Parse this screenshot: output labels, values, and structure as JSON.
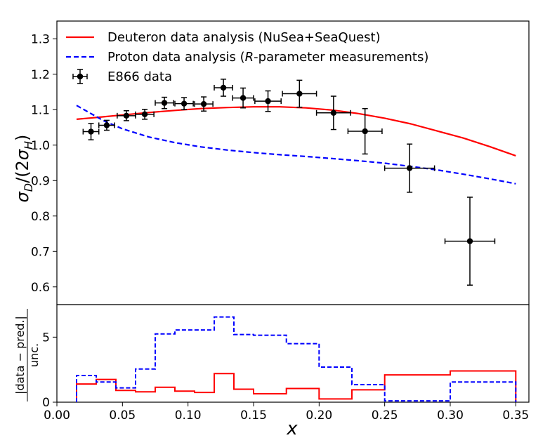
{
  "chart_data": [
    {
      "type": "line",
      "panel": "main",
      "ylabel": "σ_D/(2σ_H)",
      "xlim": [
        0.0,
        0.36
      ],
      "ylim": [
        0.55,
        1.35
      ],
      "yticks": [
        0.6,
        0.7,
        0.8,
        0.9,
        1.0,
        1.1,
        1.2,
        1.3
      ],
      "ytick_labels": [
        "0.6",
        "0.7",
        "0.8",
        "0.9",
        "1.0",
        "1.1",
        "1.2",
        "1.3"
      ],
      "legend": {
        "placement": "top-left",
        "entries": [
          {
            "parts": [
              {
                "text": "Deuteron data analysis (NuSea+SeaQuest)",
                "italic": false
              }
            ],
            "color": "#ff0000",
            "style": "solid"
          },
          {
            "parts": [
              {
                "text": "Proton data analysis (",
                "italic": false
              },
              {
                "text": "R",
                "italic": true
              },
              {
                "text": "-parameter measurements)",
                "italic": false
              }
            ],
            "color": "#0000ff",
            "style": "dashed"
          },
          {
            "parts": [
              {
                "text": "E866 data",
                "italic": false
              }
            ],
            "color": "#000000",
            "style": "errorbar"
          }
        ]
      },
      "series": [
        {
          "name": "Deuteron data analysis (NuSea+SeaQuest)",
          "color": "#ff0000",
          "style": "solid",
          "x": [
            0.015,
            0.03,
            0.05,
            0.07,
            0.09,
            0.11,
            0.13,
            0.15,
            0.17,
            0.19,
            0.21,
            0.23,
            0.25,
            0.27,
            0.29,
            0.31,
            0.33,
            0.35
          ],
          "y": [
            1.073,
            1.078,
            1.085,
            1.092,
            1.098,
            1.103,
            1.106,
            1.108,
            1.108,
            1.105,
            1.099,
            1.089,
            1.076,
            1.06,
            1.04,
            1.02,
            0.996,
            0.97
          ]
        },
        {
          "name": "Proton data analysis (R-parameter measurements)",
          "color": "#0000ff",
          "style": "dashed",
          "x": [
            0.015,
            0.025,
            0.035,
            0.05,
            0.07,
            0.09,
            0.11,
            0.13,
            0.15,
            0.17,
            0.19,
            0.21,
            0.23,
            0.25,
            0.27,
            0.29,
            0.31,
            0.33,
            0.35
          ],
          "y": [
            1.112,
            1.091,
            1.07,
            1.046,
            1.023,
            1.007,
            0.995,
            0.986,
            0.979,
            0.973,
            0.968,
            0.962,
            0.956,
            0.949,
            0.94,
            0.93,
            0.918,
            0.905,
            0.891
          ]
        }
      ],
      "errorbar_series": {
        "name": "E866 data",
        "color": "#000000",
        "points": [
          {
            "x": 0.026,
            "y": 1.038,
            "xerr": 0.006,
            "yerr": 0.023
          },
          {
            "x": 0.038,
            "y": 1.056,
            "xerr": 0.006,
            "yerr": 0.014
          },
          {
            "x": 0.053,
            "y": 1.083,
            "xerr": 0.007,
            "yerr": 0.014
          },
          {
            "x": 0.067,
            "y": 1.087,
            "xerr": 0.007,
            "yerr": 0.014
          },
          {
            "x": 0.082,
            "y": 1.119,
            "xerr": 0.007,
            "yerr": 0.016
          },
          {
            "x": 0.097,
            "y": 1.117,
            "xerr": 0.007,
            "yerr": 0.017
          },
          {
            "x": 0.112,
            "y": 1.116,
            "xerr": 0.007,
            "yerr": 0.02
          },
          {
            "x": 0.127,
            "y": 1.162,
            "xerr": 0.007,
            "yerr": 0.024
          },
          {
            "x": 0.142,
            "y": 1.133,
            "xerr": 0.008,
            "yerr": 0.028
          },
          {
            "x": 0.161,
            "y": 1.124,
            "xerr": 0.01,
            "yerr": 0.029
          },
          {
            "x": 0.185,
            "y": 1.145,
            "xerr": 0.013,
            "yerr": 0.038
          },
          {
            "x": 0.211,
            "y": 1.091,
            "xerr": 0.013,
            "yerr": 0.047
          },
          {
            "x": 0.235,
            "y": 1.039,
            "xerr": 0.013,
            "yerr": 0.064
          },
          {
            "x": 0.269,
            "y": 0.935,
            "xerr": 0.019,
            "yerr": 0.068
          },
          {
            "x": 0.315,
            "y": 0.729,
            "xerr": 0.019,
            "yerr": 0.124
          }
        ]
      }
    },
    {
      "type": "line",
      "panel": "residuals",
      "xlabel": "x",
      "ylabel": "|data − pred.| / unc.",
      "ylabel_numerator": "|data − pred.|",
      "ylabel_denominator": "unc.",
      "xlim": [
        0.0,
        0.36
      ],
      "ylim": [
        0,
        7.5
      ],
      "xticks": [
        0.0,
        0.05,
        0.1,
        0.15,
        0.2,
        0.25,
        0.3,
        0.35
      ],
      "xtick_labels": [
        "0.00",
        "0.05",
        "0.10",
        "0.15",
        "0.20",
        "0.25",
        "0.30",
        "0.35"
      ],
      "yticks": [
        0,
        5
      ],
      "ytick_labels": [
        "0",
        "5"
      ],
      "bin_edges": [
        0.015,
        0.03,
        0.045,
        0.06,
        0.075,
        0.09,
        0.105,
        0.12,
        0.135,
        0.15,
        0.175,
        0.2,
        0.225,
        0.25,
        0.3,
        0.35
      ],
      "series": [
        {
          "name": "Deuteron data analysis (NuSea+SeaQuest)",
          "color": "#ff0000",
          "style": "solid-step",
          "values": [
            1.4,
            1.75,
            0.9,
            0.8,
            1.15,
            0.85,
            0.75,
            2.2,
            1.0,
            0.65,
            1.05,
            0.25,
            0.95,
            2.1,
            2.4
          ]
        },
        {
          "name": "Proton data analysis (R-parameter measurements)",
          "color": "#0000ff",
          "style": "dashed-step",
          "values": [
            2.05,
            1.55,
            1.1,
            2.55,
            5.25,
            5.55,
            5.55,
            6.55,
            5.2,
            5.15,
            4.5,
            2.7,
            1.35,
            0.1,
            1.55
          ]
        }
      ]
    }
  ]
}
